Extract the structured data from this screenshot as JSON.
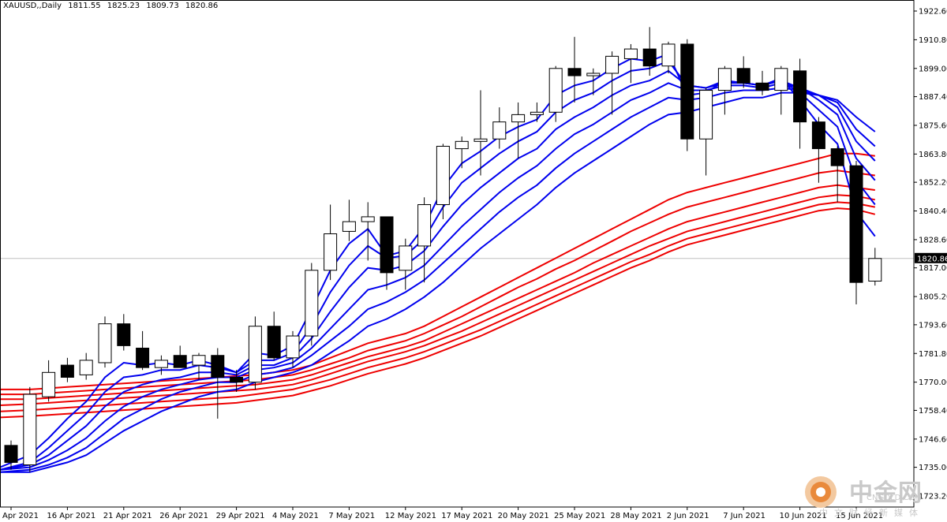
{
  "header": {
    "symbol": "XAUUSD,,Daily",
    "open": "1811.55",
    "high": "1825.23",
    "low": "1809.73",
    "close": "1820.86"
  },
  "current_price_label": "1820.86",
  "watermark": {
    "brand_cn": "中金网",
    "brand_en": "CNGOLD.COM",
    "sub_cn": "中文财经新媒体"
  },
  "colors": {
    "short_ema": "#0000ee",
    "long_ema": "#ee0000",
    "bear_candle": "#000000",
    "bull_candle": "#ffffff",
    "grid": "#d9d9d9"
  },
  "chart_data": {
    "type": "candlestick",
    "title": "XAUUSD,,Daily",
    "y_axis_ticks": [
      "1922.60",
      "1910.80",
      "1899.00",
      "1887.40",
      "1875.60",
      "1863.80",
      "1852.20",
      "1840.40",
      "1828.60",
      "1817.00",
      "1805.20",
      "1793.60",
      "1781.80",
      "1770.00",
      "1758.40",
      "1746.60",
      "1735.00",
      "1723.20"
    ],
    "x_axis_ticks": [
      "Apr 2021",
      "16 Apr 2021",
      "21 Apr 2021",
      "26 Apr 2021",
      "29 Apr 2021",
      "4 May 2021",
      "7 May 2021",
      "12 May 2021",
      "17 May 2021",
      "20 May 2021",
      "25 May 2021",
      "28 May 2021",
      "2 Jun 2021",
      "7 Jun 2021",
      "10 Jun 2021",
      "15 Jun 2021"
    ],
    "ylim": [
      1723.2,
      1922.6
    ],
    "last_price": 1820.86,
    "candles": [
      {
        "o": 1744.0,
        "h": 1746.0,
        "l": 1734.0,
        "c": 1737.0
      },
      {
        "o": 1736.0,
        "h": 1768.0,
        "l": 1733.0,
        "c": 1765.0
      },
      {
        "o": 1764.0,
        "h": 1779.0,
        "l": 1762.0,
        "c": 1774.0
      },
      {
        "o": 1777.0,
        "h": 1780.0,
        "l": 1770.0,
        "c": 1772.0
      },
      {
        "o": 1773.0,
        "h": 1782.0,
        "l": 1771.0,
        "c": 1779.0
      },
      {
        "o": 1778.0,
        "h": 1797.0,
        "l": 1776.0,
        "c": 1794.0
      },
      {
        "o": 1794.0,
        "h": 1798.0,
        "l": 1783.0,
        "c": 1785.0
      },
      {
        "o": 1784.0,
        "h": 1791.0,
        "l": 1775.0,
        "c": 1776.0
      },
      {
        "o": 1776.0,
        "h": 1781.0,
        "l": 1773.0,
        "c": 1779.0
      },
      {
        "o": 1781.0,
        "h": 1785.0,
        "l": 1776.0,
        "c": 1776.0
      },
      {
        "o": 1777.0,
        "h": 1782.0,
        "l": 1771.0,
        "c": 1781.0
      },
      {
        "o": 1781.0,
        "h": 1784.0,
        "l": 1755.0,
        "c": 1772.0
      },
      {
        "o": 1772.0,
        "h": 1775.0,
        "l": 1766.0,
        "c": 1770.0
      },
      {
        "o": 1770.0,
        "h": 1797.0,
        "l": 1767.0,
        "c": 1793.0
      },
      {
        "o": 1793.0,
        "h": 1799.0,
        "l": 1779.0,
        "c": 1780.0
      },
      {
        "o": 1780.0,
        "h": 1791.0,
        "l": 1776.0,
        "c": 1789.0
      },
      {
        "o": 1789.0,
        "h": 1819.0,
        "l": 1785.0,
        "c": 1816.0
      },
      {
        "o": 1816.0,
        "h": 1843.0,
        "l": 1812.0,
        "c": 1831.0
      },
      {
        "o": 1832.0,
        "h": 1845.0,
        "l": 1828.0,
        "c": 1836.0
      },
      {
        "o": 1836.0,
        "h": 1844.0,
        "l": 1820.0,
        "c": 1838.0
      },
      {
        "o": 1838.0,
        "h": 1838.0,
        "l": 1808.0,
        "c": 1815.0
      },
      {
        "o": 1816.0,
        "h": 1829.0,
        "l": 1808.0,
        "c": 1826.0
      },
      {
        "o": 1826.0,
        "h": 1846.0,
        "l": 1811.0,
        "c": 1843.0
      },
      {
        "o": 1843.0,
        "h": 1868.0,
        "l": 1837.0,
        "c": 1867.0
      },
      {
        "o": 1866.0,
        "h": 1871.0,
        "l": 1858.0,
        "c": 1869.0
      },
      {
        "o": 1869.0,
        "h": 1890.0,
        "l": 1855.0,
        "c": 1870.0
      },
      {
        "o": 1870.0,
        "h": 1883.0,
        "l": 1866.0,
        "c": 1877.0
      },
      {
        "o": 1877.0,
        "h": 1885.0,
        "l": 1862.0,
        "c": 1880.0
      },
      {
        "o": 1880.0,
        "h": 1885.0,
        "l": 1877.0,
        "c": 1881.0
      },
      {
        "o": 1881.0,
        "h": 1900.0,
        "l": 1877.0,
        "c": 1899.0
      },
      {
        "o": 1899.0,
        "h": 1912.0,
        "l": 1885.0,
        "c": 1896.0
      },
      {
        "o": 1896.0,
        "h": 1899.0,
        "l": 1888.0,
        "c": 1897.0
      },
      {
        "o": 1897.0,
        "h": 1906.0,
        "l": 1880.0,
        "c": 1904.0
      },
      {
        "o": 1903.0,
        "h": 1909.0,
        "l": 1893.0,
        "c": 1907.0
      },
      {
        "o": 1907.0,
        "h": 1916.0,
        "l": 1896.0,
        "c": 1900.0
      },
      {
        "o": 1900.0,
        "h": 1910.0,
        "l": 1897.0,
        "c": 1909.0
      },
      {
        "o": 1909.0,
        "h": 1911.0,
        "l": 1865.0,
        "c": 1870.0
      },
      {
        "o": 1870.0,
        "h": 1891.0,
        "l": 1855.0,
        "c": 1890.0
      },
      {
        "o": 1890.0,
        "h": 1900.0,
        "l": 1880.0,
        "c": 1899.0
      },
      {
        "o": 1899.0,
        "h": 1904.0,
        "l": 1891.0,
        "c": 1893.0
      },
      {
        "o": 1893.0,
        "h": 1898.0,
        "l": 1888.0,
        "c": 1890.0
      },
      {
        "o": 1890.0,
        "h": 1900.0,
        "l": 1880.0,
        "c": 1899.0
      },
      {
        "o": 1898.0,
        "h": 1903.0,
        "l": 1866.0,
        "c": 1877.0
      },
      {
        "o": 1877.0,
        "h": 1879.0,
        "l": 1852.0,
        "c": 1866.0
      },
      {
        "o": 1866.0,
        "h": 1867.0,
        "l": 1844.0,
        "c": 1859.0
      },
      {
        "o": 1859.0,
        "h": 1861.0,
        "l": 1802.0,
        "c": 1811.0
      },
      {
        "o": 1811.55,
        "h": 1825.23,
        "l": 1809.73,
        "c": 1820.86
      }
    ],
    "ema_series": [
      {
        "group": "short",
        "values": [
          1735.0,
          1740.0,
          1747.0,
          1755.0,
          1762.0,
          1772.0,
          1778.0,
          1777.0,
          1778.0,
          1777.0,
          1779.0,
          1777.0,
          1774.0,
          1782.0,
          1781.0,
          1785.0,
          1800.0,
          1816.0,
          1827.0,
          1833.0,
          1822.0,
          1824.0,
          1834.0,
          1850.0,
          1860.0,
          1865.0,
          1871.0,
          1875.0,
          1878.0,
          1888.0,
          1892.0,
          1894.0,
          1899.0,
          1903.0,
          1902.0,
          1905.0,
          1888.0,
          1889.0,
          1894.0,
          1893.0,
          1892.0,
          1895.0,
          1886.0,
          1876.0,
          1868.0,
          1840.0,
          1830.0
        ]
      },
      {
        "group": "short",
        "values": [
          1734.0,
          1737.0,
          1743.0,
          1750.0,
          1757.0,
          1766.0,
          1772.0,
          1773.0,
          1775.0,
          1775.0,
          1777.0,
          1776.0,
          1774.0,
          1779.0,
          1779.0,
          1782.0,
          1793.0,
          1807.0,
          1818.0,
          1826.0,
          1821.0,
          1822.0,
          1829.0,
          1842.0,
          1852.0,
          1858.0,
          1864.0,
          1869.0,
          1873.0,
          1881.0,
          1886.0,
          1889.0,
          1894.0,
          1898.0,
          1899.0,
          1902.0,
          1892.0,
          1891.0,
          1894.0,
          1893.0,
          1892.0,
          1894.0,
          1889.0,
          1882.0,
          1875.0,
          1853.0,
          1843.0
        ]
      },
      {
        "group": "short",
        "values": [
          1734.0,
          1736.0,
          1740.0,
          1746.0,
          1752.0,
          1760.0,
          1766.0,
          1769.0,
          1771.0,
          1772.0,
          1774.0,
          1774.0,
          1773.0,
          1777.0,
          1777.0,
          1780.0,
          1788.0,
          1799.0,
          1809.0,
          1817.0,
          1816.0,
          1818.0,
          1824.0,
          1834.0,
          1843.0,
          1850.0,
          1856.0,
          1862.0,
          1866.0,
          1874.0,
          1879.0,
          1883.0,
          1888.0,
          1892.0,
          1894.0,
          1898.0,
          1892.0,
          1891.0,
          1893.0,
          1893.0,
          1892.0,
          1894.0,
          1891.0,
          1886.0,
          1880.0,
          1862.0,
          1853.0
        ]
      },
      {
        "group": "short",
        "values": [
          1734.0,
          1735.0,
          1738.0,
          1742.0,
          1747.0,
          1754.0,
          1760.0,
          1764.0,
          1767.0,
          1769.0,
          1771.0,
          1772.0,
          1772.0,
          1775.0,
          1776.0,
          1778.0,
          1784.0,
          1792.0,
          1800.0,
          1808.0,
          1810.0,
          1813.0,
          1818.0,
          1826.0,
          1834.0,
          1841.0,
          1848.0,
          1854.0,
          1859.0,
          1866.0,
          1872.0,
          1876.0,
          1881.0,
          1886.0,
          1889.0,
          1893.0,
          1890.0,
          1890.0,
          1892.0,
          1892.0,
          1891.0,
          1893.0,
          1891.0,
          1888.0,
          1883.0,
          1869.0,
          1861.0
        ]
      },
      {
        "group": "short",
        "values": [
          1733.0,
          1734.0,
          1736.0,
          1739.0,
          1743.0,
          1749.0,
          1755.0,
          1759.0,
          1763.0,
          1766.0,
          1768.0,
          1770.0,
          1770.0,
          1773.0,
          1774.0,
          1776.0,
          1781.0,
          1787.0,
          1793.0,
          1800.0,
          1803.0,
          1807.0,
          1812.0,
          1819.0,
          1826.0,
          1833.0,
          1840.0,
          1846.0,
          1851.0,
          1858.0,
          1864.0,
          1869.0,
          1874.0,
          1879.0,
          1883.0,
          1887.0,
          1886.0,
          1887.0,
          1889.0,
          1890.0,
          1890.0,
          1891.0,
          1890.0,
          1888.0,
          1885.0,
          1874.0,
          1867.0
        ]
      },
      {
        "group": "short",
        "values": [
          1733.0,
          1733.0,
          1735.0,
          1737.0,
          1740.0,
          1745.0,
          1750.0,
          1754.0,
          1758.0,
          1761.0,
          1764.0,
          1766.0,
          1767.0,
          1770.0,
          1772.0,
          1774.0,
          1777.0,
          1782.0,
          1787.0,
          1793.0,
          1796.0,
          1800.0,
          1805.0,
          1811.0,
          1818.0,
          1825.0,
          1831.0,
          1837.0,
          1843.0,
          1850.0,
          1856.0,
          1861.0,
          1866.0,
          1871.0,
          1876.0,
          1880.0,
          1881.0,
          1883.0,
          1885.0,
          1887.0,
          1887.0,
          1889.0,
          1889.0,
          1888.0,
          1886.0,
          1879.0,
          1873.0
        ]
      },
      {
        "group": "long",
        "values": [
          1767.0,
          1767.0,
          1767.5,
          1768.0,
          1768.5,
          1769.0,
          1769.5,
          1770.0,
          1770.5,
          1771.0,
          1771.5,
          1772.0,
          1772.5,
          1773.0,
          1774.0,
          1775.0,
          1777.0,
          1780.0,
          1783.0,
          1786.0,
          1788.0,
          1790.0,
          1793.0,
          1797.0,
          1801.0,
          1805.0,
          1809.0,
          1813.0,
          1817.0,
          1821.0,
          1825.0,
          1829.0,
          1833.0,
          1837.0,
          1841.0,
          1845.0,
          1848.0,
          1850.0,
          1852.0,
          1854.0,
          1856.0,
          1858.0,
          1860.0,
          1862.0,
          1864.0,
          1864.0,
          1863.0
        ]
      },
      {
        "group": "long",
        "values": [
          1765.0,
          1765.0,
          1765.5,
          1766.0,
          1766.5,
          1767.0,
          1767.5,
          1768.0,
          1768.5,
          1769.0,
          1769.5,
          1770.0,
          1770.5,
          1771.0,
          1772.0,
          1773.0,
          1775.0,
          1777.5,
          1780.0,
          1783.0,
          1785.0,
          1787.0,
          1790.0,
          1793.5,
          1797.0,
          1801.0,
          1805.0,
          1809.0,
          1812.5,
          1816.5,
          1820.0,
          1824.0,
          1828.0,
          1832.0,
          1835.5,
          1839.0,
          1842.0,
          1844.0,
          1846.0,
          1848.0,
          1850.0,
          1852.0,
          1854.0,
          1856.0,
          1857.0,
          1856.0,
          1855.0
        ]
      },
      {
        "group": "long",
        "values": [
          1763.0,
          1763.0,
          1763.5,
          1764.0,
          1764.5,
          1765.0,
          1765.5,
          1766.0,
          1766.5,
          1767.0,
          1767.5,
          1768.0,
          1768.5,
          1769.0,
          1770.0,
          1771.0,
          1773.0,
          1775.5,
          1778.0,
          1780.5,
          1782.5,
          1784.5,
          1787.0,
          1790.5,
          1794.0,
          1797.5,
          1801.0,
          1804.5,
          1808.0,
          1811.5,
          1815.0,
          1819.0,
          1822.5,
          1826.0,
          1829.5,
          1833.0,
          1836.0,
          1838.0,
          1840.0,
          1842.0,
          1844.0,
          1846.0,
          1848.0,
          1850.0,
          1851.0,
          1850.0,
          1849.0
        ]
      },
      {
        "group": "long",
        "values": [
          1760.5,
          1761.0,
          1761.5,
          1762.0,
          1762.5,
          1763.0,
          1763.5,
          1764.0,
          1764.5,
          1765.0,
          1765.5,
          1766.0,
          1766.5,
          1767.0,
          1768.0,
          1769.0,
          1771.0,
          1773.5,
          1776.0,
          1778.5,
          1780.5,
          1782.5,
          1785.0,
          1788.0,
          1791.0,
          1794.5,
          1798.0,
          1801.5,
          1805.0,
          1808.5,
          1812.0,
          1815.5,
          1819.0,
          1822.5,
          1826.0,
          1829.0,
          1832.0,
          1834.0,
          1836.0,
          1838.0,
          1840.0,
          1842.0,
          1844.0,
          1846.0,
          1847.0,
          1846.5,
          1845.0
        ]
      },
      {
        "group": "long",
        "values": [
          1758.0,
          1758.5,
          1759.0,
          1759.5,
          1760.0,
          1760.5,
          1761.0,
          1761.5,
          1762.0,
          1762.5,
          1763.0,
          1763.5,
          1764.0,
          1765.0,
          1766.0,
          1767.0,
          1769.0,
          1771.0,
          1773.5,
          1776.0,
          1778.0,
          1780.0,
          1782.5,
          1785.5,
          1788.5,
          1791.5,
          1795.0,
          1798.5,
          1802.0,
          1805.5,
          1809.0,
          1812.5,
          1816.0,
          1819.5,
          1822.5,
          1826.0,
          1829.0,
          1831.0,
          1833.0,
          1835.0,
          1837.0,
          1839.0,
          1841.0,
          1843.0,
          1844.0,
          1843.5,
          1842.0
        ]
      },
      {
        "group": "long",
        "values": [
          1755.5,
          1756.0,
          1756.5,
          1757.0,
          1757.5,
          1758.0,
          1758.5,
          1759.0,
          1759.5,
          1760.0,
          1760.5,
          1761.0,
          1761.5,
          1762.5,
          1763.5,
          1764.5,
          1766.5,
          1768.5,
          1771.0,
          1773.5,
          1775.5,
          1777.5,
          1780.0,
          1783.0,
          1786.0,
          1789.0,
          1792.5,
          1796.0,
          1799.5,
          1803.0,
          1806.5,
          1810.0,
          1813.5,
          1817.0,
          1820.0,
          1823.5,
          1826.5,
          1828.5,
          1830.5,
          1832.5,
          1834.5,
          1836.5,
          1838.5,
          1840.5,
          1841.5,
          1841.0,
          1839.0
        ]
      }
    ]
  }
}
